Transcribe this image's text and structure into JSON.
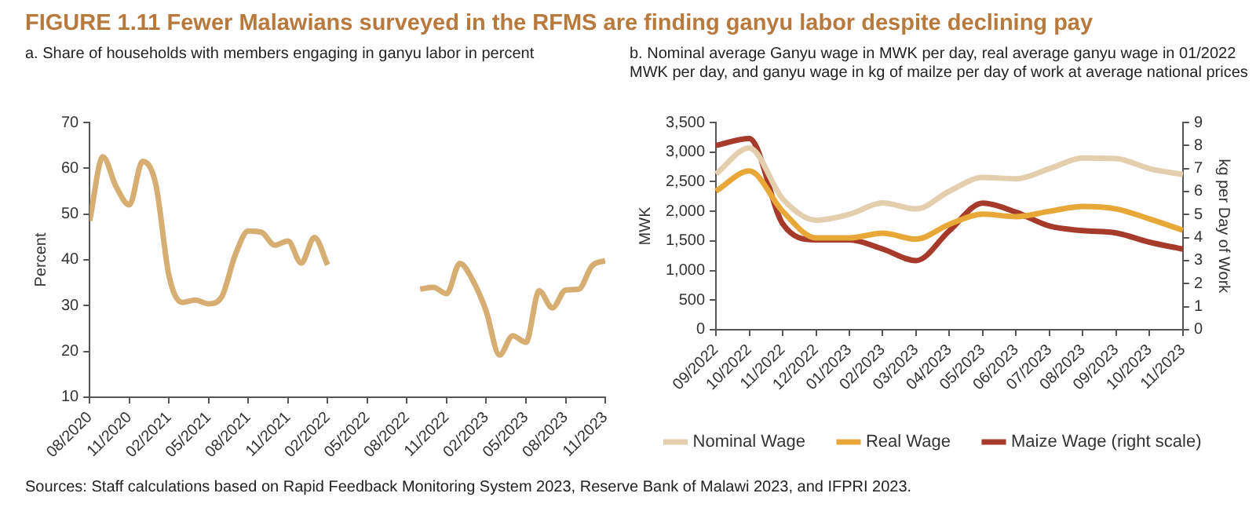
{
  "chart_data": [
    {
      "type": "line",
      "title": "FIGURE 1.11  Fewer Malawians surveyed in the RFMS are finding ganyu labor despite declining pay",
      "subtitle": "a. Share of households with members engaging in ganyu labor in percent",
      "ylabel": "Percent",
      "x": [
        "2020-08",
        "2020-09",
        "2020-10",
        "2020-11",
        "2020-12",
        "2021-01",
        "2021-02",
        "2021-03",
        "2021-04",
        "2021-05",
        "2021-06",
        "2021-07",
        "2021-08",
        "2021-09",
        "2021-10",
        "2021-11",
        "2021-12",
        "2022-01",
        "2022-02",
        "2022-03",
        "2022-04",
        "2022-05",
        "2022-06",
        "2022-07",
        "2022-08",
        "2022-09",
        "2022-10",
        "2022-11",
        "2022-12",
        "2023-01",
        "2023-02",
        "2023-03",
        "2023-04",
        "2023-05",
        "2023-06",
        "2023-07",
        "2023-08",
        "2023-09",
        "2023-10",
        "2023-11"
      ],
      "values": [
        48.5,
        62.5,
        56,
        52,
        61.5,
        56.5,
        36.5,
        30.7,
        31.2,
        30.4,
        32,
        41,
        46.3,
        46,
        43.2,
        44.1,
        39.3,
        44.9,
        38.9,
        null,
        null,
        null,
        null,
        null,
        null,
        33.6,
        34,
        32.6,
        39.2,
        35.4,
        28.7,
        19.2,
        23.4,
        22,
        33.2,
        29.5,
        33.4,
        33.6,
        38.7,
        39.8
      ],
      "color": "#d6ae72",
      "xlim": [
        "2020-08",
        "2023-11"
      ],
      "xticks": [
        {
          "value": "2020-08",
          "label": "08/2020"
        },
        {
          "value": "2020-11",
          "label": "11/2020"
        },
        {
          "value": "2021-02",
          "label": "02/2021"
        },
        {
          "value": "2021-05",
          "label": "05/2021"
        },
        {
          "value": "2021-08",
          "label": "08/2021"
        },
        {
          "value": "2021-11",
          "label": "11/2021"
        },
        {
          "value": "2022-02",
          "label": "02/2022"
        },
        {
          "value": "2022-05",
          "label": "05/2022"
        },
        {
          "value": "2022-08",
          "label": "08/2022"
        },
        {
          "value": "2022-11",
          "label": "11/2022"
        },
        {
          "value": "2023-02",
          "label": "02/2023"
        },
        {
          "value": "2023-05",
          "label": "05/2023"
        },
        {
          "value": "2023-08",
          "label": "08/2023"
        },
        {
          "value": "2023-11",
          "label": "11/2023"
        }
      ],
      "ylim": [
        10,
        70
      ],
      "yticks": [
        10,
        20,
        30,
        40,
        50,
        60,
        70
      ],
      "grid": false,
      "annotations": [
        "Sources: Staff calculations based on Rapid Feedback Monitoring System 2023, Reserve Bank of Malawi 2023, and IFPRI 2023."
      ]
    },
    {
      "type": "line",
      "title": "b. Nominal average Ganyu wage in MWK per day, real average ganyu wage in 01/2022 MWK per day, and ganyu wage in kg of mailze per day of work at average national prices",
      "ylabel": "MWK",
      "y2label": "kg per Day of Work",
      "categories": [
        "09/2022",
        "10/2022",
        "11/2022",
        "12/2022",
        "01/2023",
        "02/2023",
        "03/2023",
        "04/2023",
        "05/2023",
        "06/2023",
        "07/2023",
        "08/2023",
        "09/2023",
        "10/2023",
        "11/2023"
      ],
      "series": [
        {
          "name": "Nominal Wage",
          "color": "#e3ceae",
          "values": [
            2630,
            3070,
            2210,
            1850,
            1950,
            2140,
            2040,
            2340,
            2570,
            2550,
            2720,
            2900,
            2890,
            2720,
            2620
          ]
        },
        {
          "name": "Real Wage",
          "color": "#e8a838",
          "values": [
            2340,
            2680,
            2000,
            1550,
            1550,
            1630,
            1530,
            1780,
            1950,
            1910,
            2000,
            2080,
            2040,
            1870,
            1680
          ]
        },
        {
          "name": "Maize Wage (right scale)",
          "color": "#a63a2b",
          "axis": "y2",
          "values": [
            8.0,
            8.3,
            4.6,
            3.9,
            3.9,
            3.5,
            3.0,
            4.3,
            5.5,
            5.1,
            4.5,
            4.3,
            4.2,
            3.8,
            3.5
          ]
        }
      ],
      "ylim": [
        0,
        3500
      ],
      "yticks": [
        {
          "value": 0,
          "label": "0"
        },
        {
          "value": 500,
          "label": "500"
        },
        {
          "value": 1000,
          "label": "1,000"
        },
        {
          "value": 1500,
          "label": "1,500"
        },
        {
          "value": 2000,
          "label": "2,000"
        },
        {
          "value": 2500,
          "label": "2,500"
        },
        {
          "value": 3000,
          "label": "3,000"
        },
        {
          "value": 3500,
          "label": "3,500"
        }
      ],
      "y2lim": [
        0,
        9
      ],
      "y2ticks": [
        0,
        1,
        2,
        3,
        4,
        5,
        6,
        7,
        8,
        9
      ],
      "grid": false,
      "legend": "bottom"
    }
  ]
}
